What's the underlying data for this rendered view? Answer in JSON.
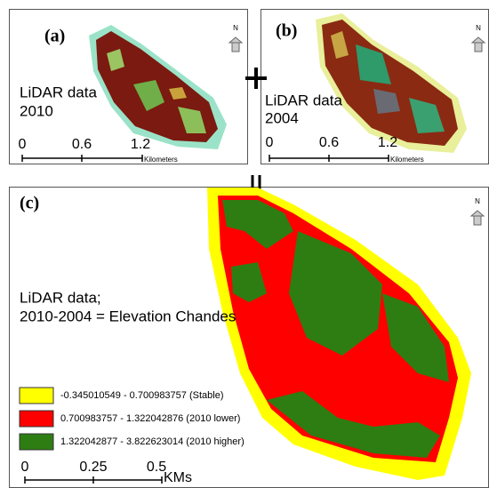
{
  "panels": [
    {
      "label": "(a)",
      "title": "LiDAR data",
      "year": "2010",
      "scale": [
        "0",
        "0.6",
        "1.2"
      ],
      "scale_unit": "Kilometers",
      "north": "N"
    },
    {
      "label": "(b)",
      "title": "LiDAR data",
      "year": "2004",
      "scale": [
        "0",
        "0.6",
        "1.2"
      ],
      "scale_unit": "Kilometers",
      "north": "N"
    },
    {
      "label": "(c)",
      "title": "LiDAR data;",
      "subtitle": "2010-2004 = Elevation Chandes",
      "scale": [
        "0",
        "0.25",
        "0.5"
      ],
      "scale_unit": "KMs",
      "north": "N",
      "legend": [
        {
          "label": "-0.345010549 - 0.700983757 (Stable)",
          "color": "#ffff00"
        },
        {
          "label": "0.700983757 - 1.322042876 (2010 lower)",
          "color": "#ff0000"
        },
        {
          "label": "1.322042877 - 3.822623014 (2010 higher)",
          "color": "#2e7d12"
        }
      ]
    }
  ]
}
